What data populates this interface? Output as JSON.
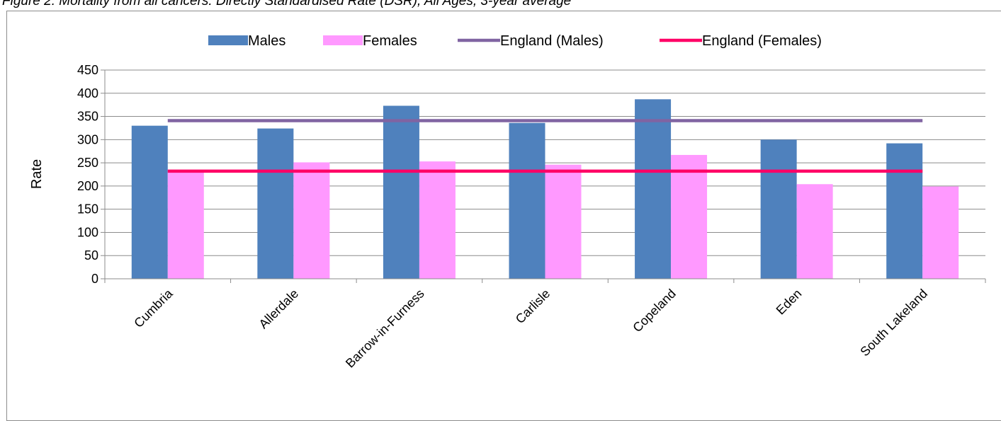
{
  "caption": "Figure 2: Mortality from all cancers: Directly Standardised Rate (DSR), All Ages, 3-year average",
  "chart_data": {
    "type": "bar",
    "title": "",
    "xlabel": "",
    "ylabel": "Rate",
    "ylim": [
      0,
      450
    ],
    "yticks": [
      0,
      50,
      100,
      150,
      200,
      250,
      300,
      350,
      400,
      450
    ],
    "grid": true,
    "legend_position": "top",
    "categories": [
      "Cumbria",
      "Allerdale",
      "Barrow-in-Furness",
      "Carlisle",
      "Copeland",
      "Eden",
      "South Lakeland"
    ],
    "series": [
      {
        "name": "Males",
        "kind": "bar",
        "color": "#4f81bd",
        "values": [
          330,
          324,
          373,
          336,
          387,
          300,
          292
        ]
      },
      {
        "name": "Females",
        "kind": "bar",
        "color": "#ff99ff",
        "values": [
          234,
          251,
          253,
          246,
          267,
          204,
          199
        ]
      },
      {
        "name": "England (Males)",
        "kind": "line",
        "color": "#8064a2",
        "values": [
          341,
          341,
          341,
          341,
          341,
          341,
          341
        ]
      },
      {
        "name": "England (Females)",
        "kind": "line",
        "color": "#ff0066",
        "values": [
          232,
          232,
          232,
          232,
          232,
          232,
          232
        ]
      }
    ]
  }
}
